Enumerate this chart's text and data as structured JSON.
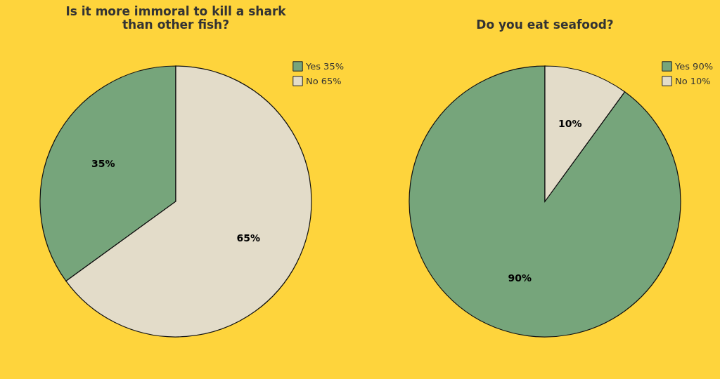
{
  "chart_data": [
    {
      "type": "pie",
      "title": "Is it more immoral to kill a shark\nthan other fish?",
      "categories": [
        "Yes 35%",
        "No 65%"
      ],
      "values": [
        35,
        65
      ],
      "colors": [
        "#76a57b",
        "#e3dcc9"
      ],
      "value_labels": [
        "35%",
        "65%"
      ],
      "legend": "top right"
    },
    {
      "type": "pie",
      "title": "Do you eat seafood?",
      "categories": [
        "Yes 90%",
        "No 10%"
      ],
      "values": [
        90,
        10
      ],
      "colors": [
        "#76a57b",
        "#e3dcc9"
      ],
      "value_labels": [
        "90%",
        "10%"
      ],
      "legend": "top right"
    }
  ]
}
